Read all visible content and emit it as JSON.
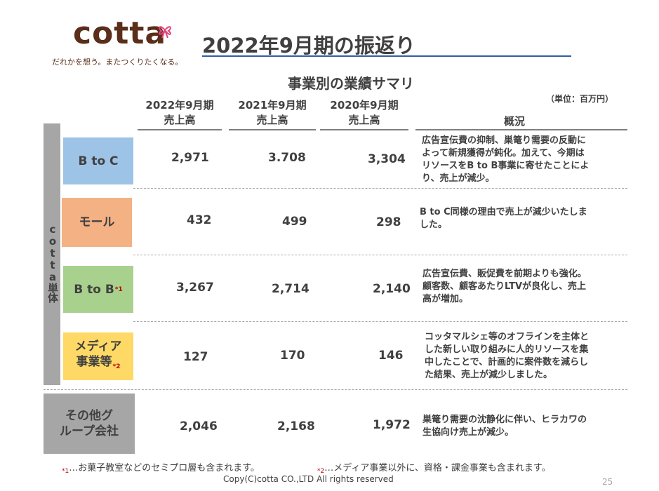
{
  "logo": {
    "word": "cotta",
    "tagline": "だれかを想う。またつくりたくなる。"
  },
  "title": "2022年9月期の振返り",
  "section_title": "事業別の業績サマリ",
  "unit": "（単位：百万円）",
  "columns": [
    {
      "line1": "2022年9月期",
      "line2": "売上高"
    },
    {
      "line1": "2021年9月期",
      "line2": "売上高"
    },
    {
      "line1": "2020年9月期",
      "line2": "売上高"
    }
  ],
  "overview_header": "概況",
  "group_label": "cotta単体",
  "rows": [
    {
      "category": "B to C",
      "mark": "",
      "color": "#9dc3e6",
      "v2022": "2,971",
      "v2021": "3.708",
      "v2020": "3,304",
      "desc": [
        "広告宣伝費の抑制、巣篭り需要の反動に",
        "よって新規獲得が鈍化。加えて、今期は",
        "リソースをB to B事業に寄せたことによ",
        "り、売上が減少。"
      ]
    },
    {
      "category": "モール",
      "mark": "",
      "color": "#f4b183",
      "v2022": "432",
      "v2021": "499",
      "v2020": "298",
      "desc": [
        "B to C同様の理由で売上が減少いたしま",
        "した。"
      ]
    },
    {
      "category": "B to B",
      "mark": "*1",
      "color": "#a9d18e",
      "v2022": "3,267",
      "v2021": "2,714",
      "v2020": "2,140",
      "desc": [
        "広告宣伝費、販促費を前期よりも強化。",
        "顧客数、顧客あたりLTVが良化し、売上",
        "高が増加。"
      ]
    },
    {
      "category_l1": "メディア",
      "category": "事業等",
      "mark": "*2",
      "color": "#ffd966",
      "v2022": "127",
      "v2021": "170",
      "v2020": "146",
      "desc": [
        "コッタマルシェ等のオフラインを主体と",
        "した新しい取り組みに人的リソースを集",
        "中したことで、計画的に案件数を減らし",
        "た結果、売上が減少しました。"
      ]
    },
    {
      "category_l1": "その他グ",
      "category": "ループ会社",
      "mark": "",
      "color": "#a6a6a6",
      "v2022": "2,046",
      "v2021": "2,168",
      "v2020": "1,972",
      "desc": [
        "巣篭り需要の沈静化に伴い、ヒラカワの",
        "生協向け売上が減少。"
      ]
    }
  ],
  "footnotes": [
    {
      "mark": "*1",
      "text": "…お菓子教室などのセミプロ層も含まれます。"
    },
    {
      "mark": "*2",
      "text": "…メディア事業以外に、資格・課金事業も含まれます。"
    }
  ],
  "copyright": "Copy(C)cotta CO.,LTD All rights reserved",
  "page_number": "25"
}
